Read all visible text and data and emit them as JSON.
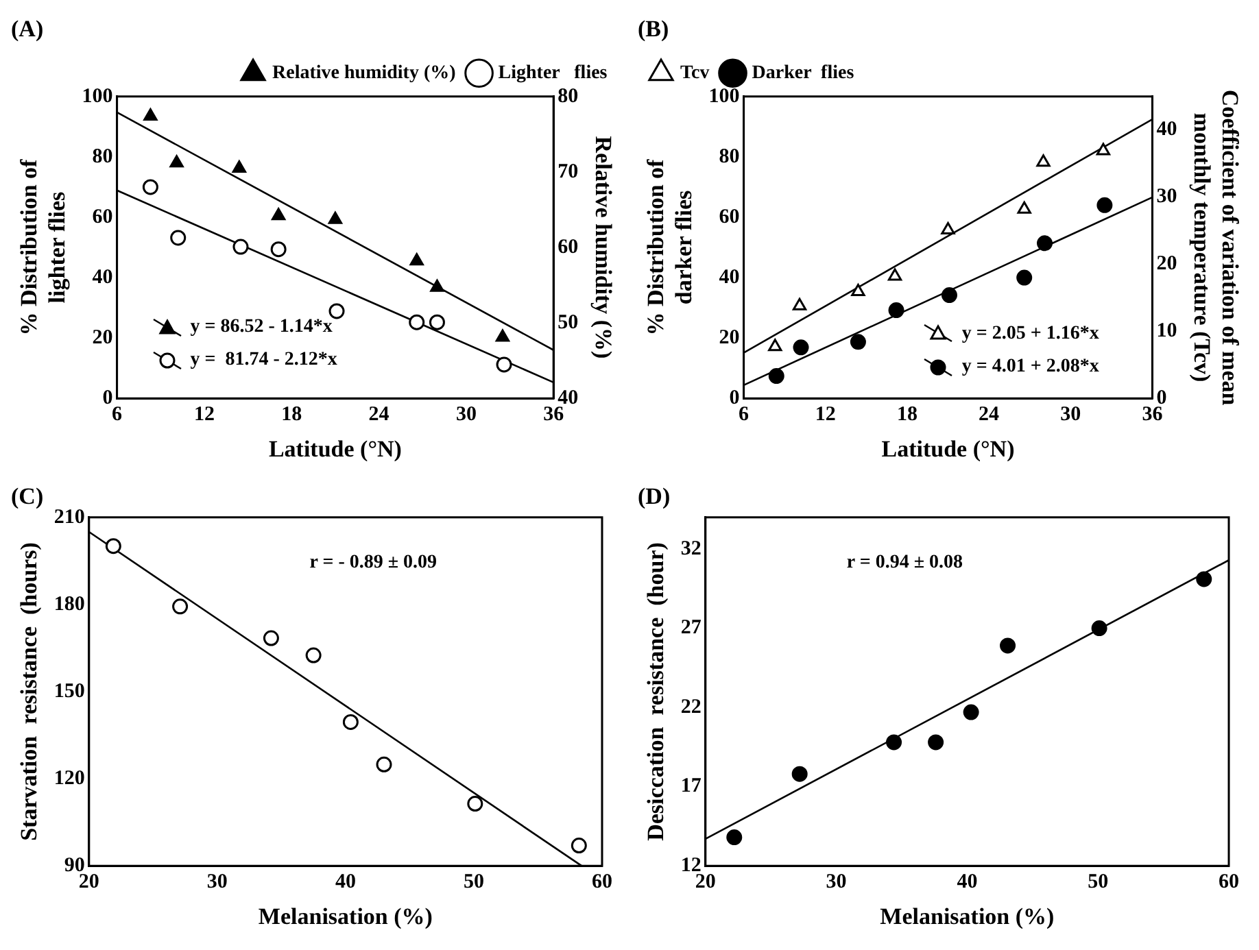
{
  "chart_data": [
    {
      "type": "scatter",
      "title": "(A)",
      "xlabel": "Latitude (°N)",
      "ylabel": "% Distribution of\nlighter flies",
      "y2label": "Relative humidity (%)",
      "xlim": [
        6,
        36
      ],
      "xticks": [
        6,
        12,
        18,
        24,
        30,
        36
      ],
      "ylim": [
        0,
        100
      ],
      "yticks": [
        0,
        20,
        40,
        60,
        80,
        100
      ],
      "y2lim": [
        40,
        80
      ],
      "y2ticks": [
        40,
        50,
        60,
        70,
        80
      ],
      "legend": "top right",
      "series": [
        {
          "name": "Relative humidity (%)",
          "axis": "y2",
          "marker": "triangle",
          "color": "#000000",
          "x": [
            8.3,
            10.1,
            14.4,
            17.1,
            21.0,
            26.6,
            28.0,
            32.5
          ],
          "values": [
            77.4,
            71.2,
            70.5,
            64.2,
            63.7,
            58.2,
            54.7,
            48.1
          ]
        },
        {
          "name": "Lighter   flies",
          "marker": "circle",
          "color": "#ffffff",
          "x": [
            8.3,
            10.2,
            14.5,
            17.1,
            21.1,
            26.6,
            28.0,
            32.6
          ],
          "values": [
            70,
            53.2,
            50.2,
            49.4,
            28.9,
            25.2,
            25.2,
            11.2
          ]
        },
        {
          "name": "y = 86.52 - 1.14*x",
          "type": "line",
          "axis": "y2",
          "color": "#000000",
          "x": [
            6,
            36
          ],
          "values": [
            77.9,
            46.4
          ]
        },
        {
          "name": "y =  81.74 - 2.12*x",
          "type": "line",
          "color": "#000000",
          "x": [
            6,
            36
          ],
          "values": [
            68.9,
            5.3
          ]
        }
      ]
    },
    {
      "type": "scatter",
      "title": "(B)",
      "xlabel": "Latitude (°N)",
      "ylabel": "% Distribution of\ndarker flies",
      "y2label": "Coefficient of variation of mean\nmonthly temperature (Tcv)",
      "xlim": [
        6,
        36
      ],
      "xticks": [
        6,
        12,
        18,
        24,
        30,
        36
      ],
      "ylim": [
        0,
        100
      ],
      "yticks": [
        0,
        20,
        40,
        60,
        80,
        100
      ],
      "y2lim": [
        0,
        45
      ],
      "y2ticks": [
        0,
        10,
        20,
        30,
        40
      ],
      "legend": "top left",
      "series": [
        {
          "name": "Tcv",
          "axis": "y2",
          "marker": "triangle",
          "color": "#ffffff",
          "x": [
            8.3,
            10.1,
            14.4,
            17.1,
            21.0,
            26.6,
            28.0,
            32.4
          ],
          "values": [
            7.7,
            13.8,
            15.9,
            18.2,
            25.1,
            28.2,
            35.2,
            36.9
          ]
        },
        {
          "name": "Darker  flies",
          "marker": "circle",
          "color": "#000000",
          "x": [
            8.4,
            10.2,
            14.4,
            17.2,
            21.1,
            26.6,
            28.1,
            32.5
          ],
          "values": [
            7.4,
            16.9,
            18.7,
            29.2,
            34.2,
            40.0,
            51.4,
            64.0
          ]
        },
        {
          "name": "y = 2.05 + 1.16*x",
          "type": "line",
          "axis": "y2",
          "color": "#000000",
          "x": [
            6,
            36
          ],
          "values": [
            6.8,
            41.6
          ]
        },
        {
          "name": "y = 4.01 + 2.08*x",
          "type": "line",
          "color": "#000000",
          "x": [
            6,
            36
          ],
          "values": [
            4.4,
            66.6
          ]
        }
      ]
    },
    {
      "type": "scatter",
      "title": "(C)",
      "xlabel": "Melanisation (%)",
      "ylabel": "Starvation  resistance  (hours)",
      "xlim": [
        20,
        60
      ],
      "xticks": [
        20,
        30,
        40,
        50,
        60
      ],
      "ylim": [
        90,
        210
      ],
      "yticks": [
        90,
        120,
        150,
        180,
        210
      ],
      "annotations": [
        "r = - 0.89 ± 0.09"
      ],
      "series": [
        {
          "marker": "circle",
          "color": "#ffffff",
          "x": [
            21.9,
            27.1,
            34.2,
            37.5,
            40.4,
            43.0,
            50.1,
            58.2
          ],
          "values": [
            200.1,
            179.3,
            168.4,
            162.5,
            139.5,
            124.9,
            111.4,
            97.0
          ]
        },
        {
          "type": "line",
          "color": "#000000",
          "x": [
            20,
            58.4
          ],
          "values": [
            205,
            90
          ]
        }
      ]
    },
    {
      "type": "scatter",
      "title": "(D)",
      "xlabel": "Melanisation (%)",
      "ylabel": "Desiccation  resistance  (hour)",
      "xlim": [
        20,
        60
      ],
      "xticks": [
        20,
        30,
        40,
        50,
        60
      ],
      "ylim": [
        12,
        34
      ],
      "yticks": [
        12,
        17,
        22,
        27,
        32
      ],
      "annotations": [
        "r = 0.94 ± 0.08"
      ],
      "series": [
        {
          "marker": "circle",
          "color": "#000000",
          "x": [
            22.2,
            27.2,
            34.4,
            37.6,
            40.3,
            43.1,
            50.1,
            58.1
          ],
          "values": [
            13.8,
            17.8,
            19.8,
            19.8,
            21.7,
            25.9,
            27.0,
            30.1
          ]
        },
        {
          "type": "line",
          "color": "#000000",
          "x": [
            20,
            60
          ],
          "values": [
            13.7,
            31.3
          ]
        }
      ]
    }
  ]
}
